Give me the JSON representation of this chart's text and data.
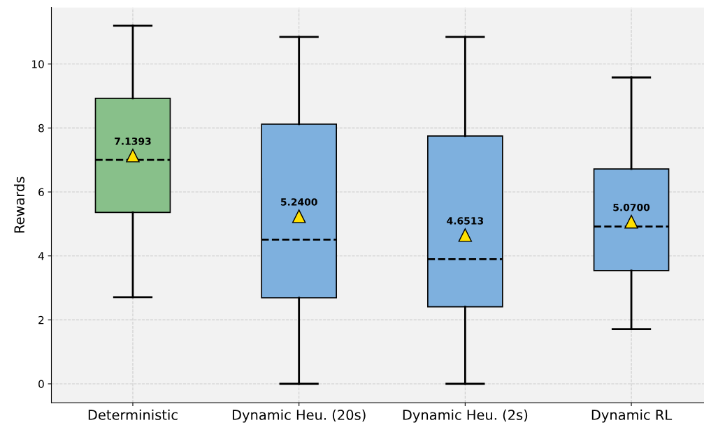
{
  "chart_data": {
    "type": "box",
    "ylabel": "Rewards",
    "categories": [
      "Deterministic",
      "Dynamic Heu. (20s)",
      "Dynamic Heu. (2s)",
      "Dynamic RL"
    ],
    "colors": [
      "#88c08a",
      "#7eb0de",
      "#7eb0de",
      "#7eb0de"
    ],
    "boxes": [
      {
        "low": 2.71,
        "q1": 5.36,
        "median": 7.0,
        "q3": 8.93,
        "high": 11.2,
        "mean": 7.1393
      },
      {
        "low": 0,
        "q1": 2.69,
        "median": 4.51,
        "q3": 8.12,
        "high": 10.85,
        "mean": 5.24
      },
      {
        "low": 0,
        "q1": 2.41,
        "median": 3.9,
        "q3": 7.75,
        "high": 10.85,
        "mean": 4.6513
      },
      {
        "low": 1.71,
        "q1": 3.54,
        "median": 4.92,
        "q3": 6.72,
        "high": 9.58,
        "mean": 5.07
      }
    ],
    "annotations": [
      "7.1393",
      "5.2400",
      "4.6513",
      "5.0700"
    ],
    "ylim": [
      -0.59,
      11.77
    ],
    "yticks": [
      0,
      2,
      4,
      6,
      8,
      10
    ],
    "grid": true,
    "marker": "triangle",
    "line_style": "dashed"
  }
}
